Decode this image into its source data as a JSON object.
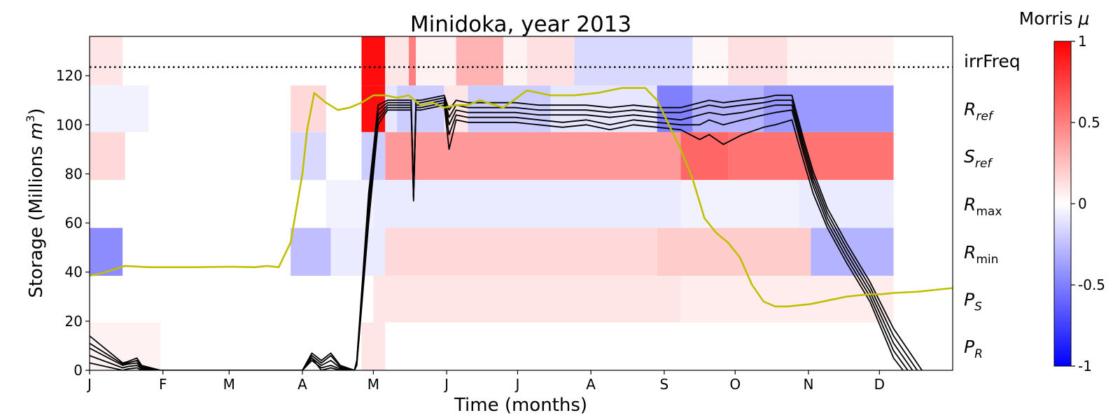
{
  "chart_data": {
    "type": "heatmap",
    "title": "Minidoka, year 2013",
    "xlabel": "Time (months)",
    "ylabel": "Storage (Millions m³)",
    "ylabel_main": "Storage (Millions ",
    "ylabel_unit": "m",
    "ylabel_sup": "3",
    "ylabel_close": ")",
    "x_ticks": [
      "J",
      "F",
      "M",
      "A",
      "M",
      "J",
      "J",
      "A",
      "S",
      "O",
      "N",
      "D"
    ],
    "x_tick_days": [
      0,
      31,
      59,
      90,
      120,
      151,
      181,
      212,
      243,
      273,
      304,
      334
    ],
    "xlim": [
      0,
      365
    ],
    "ylim": [
      0,
      136
    ],
    "y_ticks": [
      0,
      20,
      40,
      60,
      80,
      100,
      120
    ],
    "capacity_line": 123.5,
    "colorbar": {
      "title": "Morris μ",
      "title_text": "Morris ",
      "title_symbol": "μ",
      "range": [
        -1,
        1
      ],
      "ticks": [
        {
          "value": 1,
          "label": "1"
        },
        {
          "value": 0.5,
          "label": "0.5"
        },
        {
          "value": 0,
          "label": "0"
        },
        {
          "value": -0.5,
          "label": "-0.5"
        },
        {
          "value": -1,
          "label": "-1"
        }
      ],
      "colors": {
        "neg": "#0000ff",
        "mid": "#ffffff",
        "pos": "#ff0000"
      }
    },
    "parameter_rows": [
      {
        "key": "irrFreq",
        "base": "irrFreq",
        "sub": "",
        "sub_style": "plain",
        "y_range": [
          116,
          136
        ]
      },
      {
        "key": "Rref",
        "base": "R",
        "sub": "ref",
        "sub_style": "italic",
        "y_range": [
          97,
          116
        ]
      },
      {
        "key": "Sref",
        "base": "S",
        "sub": "ref",
        "sub_style": "italic",
        "y_range": [
          77.5,
          97
        ]
      },
      {
        "key": "Rmax",
        "base": "R",
        "sub": "max",
        "sub_style": "plain",
        "y_range": [
          58,
          77.5
        ]
      },
      {
        "key": "Rmin",
        "base": "R",
        "sub": "min",
        "sub_style": "plain",
        "y_range": [
          38.5,
          58
        ]
      },
      {
        "key": "PS",
        "base": "P",
        "sub": "S",
        "sub_style": "italic",
        "y_range": [
          19.5,
          38.5
        ]
      },
      {
        "key": "PR",
        "base": "P",
        "sub": "R",
        "sub_style": "italic",
        "y_range": [
          0,
          19.5
        ]
      }
    ],
    "heatmap_segments": {
      "irrFreq": [
        {
          "start": 0,
          "end": 14,
          "value": 0.1
        },
        {
          "start": 14,
          "end": 115,
          "value": 0
        },
        {
          "start": 115,
          "end": 125,
          "value": 0.95
        },
        {
          "start": 125,
          "end": 135,
          "value": 0.1
        },
        {
          "start": 135,
          "end": 138,
          "value": 0.5
        },
        {
          "start": 138,
          "end": 155,
          "value": 0.05
        },
        {
          "start": 155,
          "end": 175,
          "value": 0.3
        },
        {
          "start": 175,
          "end": 185,
          "value": 0.05
        },
        {
          "start": 185,
          "end": 205,
          "value": 0.12
        },
        {
          "start": 205,
          "end": 255,
          "value": -0.15
        },
        {
          "start": 255,
          "end": 270,
          "value": 0.03
        },
        {
          "start": 270,
          "end": 295,
          "value": 0.12
        },
        {
          "start": 295,
          "end": 340,
          "value": 0.05
        }
      ],
      "Rref": [
        {
          "start": 0,
          "end": 25,
          "value": -0.05
        },
        {
          "start": 85,
          "end": 100,
          "value": 0.15
        },
        {
          "start": 115,
          "end": 125,
          "value": 0.95
        },
        {
          "start": 125,
          "end": 130,
          "value": -0.1
        },
        {
          "start": 130,
          "end": 150,
          "value": -0.2
        },
        {
          "start": 150,
          "end": 160,
          "value": 0.1
        },
        {
          "start": 160,
          "end": 195,
          "value": -0.2
        },
        {
          "start": 195,
          "end": 240,
          "value": -0.1
        },
        {
          "start": 240,
          "end": 255,
          "value": -0.5
        },
        {
          "start": 255,
          "end": 285,
          "value": -0.3
        },
        {
          "start": 285,
          "end": 340,
          "value": -0.4
        }
      ],
      "Sref": [
        {
          "start": 0,
          "end": 15,
          "value": 0.15
        },
        {
          "start": 85,
          "end": 100,
          "value": -0.15
        },
        {
          "start": 115,
          "end": 125,
          "value": -0.2
        },
        {
          "start": 125,
          "end": 250,
          "value": 0.4
        },
        {
          "start": 250,
          "end": 270,
          "value": 0.6
        },
        {
          "start": 270,
          "end": 340,
          "value": 0.55
        }
      ],
      "Rmax": [
        {
          "start": 100,
          "end": 120,
          "value": -0.05
        },
        {
          "start": 120,
          "end": 250,
          "value": -0.08
        },
        {
          "start": 250,
          "end": 300,
          "value": -0.05
        },
        {
          "start": 300,
          "end": 340,
          "value": -0.08
        }
      ],
      "Rmin": [
        {
          "start": 0,
          "end": 14,
          "value": -0.45
        },
        {
          "start": 14,
          "end": 85,
          "value": 0
        },
        {
          "start": 85,
          "end": 102,
          "value": -0.25
        },
        {
          "start": 102,
          "end": 125,
          "value": -0.08
        },
        {
          "start": 125,
          "end": 240,
          "value": 0.15
        },
        {
          "start": 240,
          "end": 305,
          "value": 0.2
        },
        {
          "start": 305,
          "end": 340,
          "value": -0.3
        }
      ],
      "PS": [
        {
          "start": 120,
          "end": 250,
          "value": 0.1
        },
        {
          "start": 250,
          "end": 340,
          "value": 0.07
        }
      ],
      "PR": [
        {
          "start": 0,
          "end": 30,
          "value": 0.05
        },
        {
          "start": 115,
          "end": 125,
          "value": 0.1
        }
      ]
    },
    "series": [
      {
        "kind": "observed",
        "color": "#bfbf00",
        "x": [
          0,
          5,
          10,
          15,
          25,
          35,
          45,
          60,
          70,
          75,
          80,
          85,
          90,
          92,
          95,
          100,
          105,
          110,
          115,
          120,
          125,
          130,
          135,
          140,
          145,
          150,
          155,
          160,
          165,
          175,
          185,
          195,
          205,
          215,
          225,
          235,
          240,
          245,
          250,
          255,
          260,
          265,
          270,
          275,
          280,
          285,
          290,
          295,
          300,
          305,
          310,
          315,
          320,
          325,
          330,
          335,
          340,
          350,
          365
        ],
        "y": [
          38.5,
          39.5,
          41,
          42.5,
          42,
          42,
          42,
          42.2,
          42,
          42.5,
          42,
          52,
          80,
          98,
          113,
          109,
          106,
          107,
          109,
          112,
          112,
          111,
          112,
          108,
          109,
          107,
          108,
          108,
          110,
          107,
          114,
          112,
          112,
          113,
          115,
          115,
          110,
          100,
          90,
          78,
          62,
          56,
          52,
          46,
          35,
          28,
          26,
          26,
          26.5,
          27,
          28,
          29,
          30,
          30.5,
          31,
          31,
          31.5,
          32,
          33.5
        ]
      }
    ],
    "simulated_runs": [
      {
        "x": [
          0,
          14,
          16,
          20,
          22,
          30,
          80,
          90,
          94,
          98,
          102,
          106,
          112,
          113,
          118,
          122,
          126,
          130,
          134,
          136,
          137,
          138,
          140,
          150,
          152,
          155,
          160,
          170,
          180,
          190,
          200,
          210,
          220,
          230,
          240,
          250,
          258,
          262,
          268,
          276,
          285,
          290,
          297,
          302,
          306,
          312,
          320,
          330,
          340,
          344
        ],
        "y": [
          3,
          0,
          0.5,
          1,
          0,
          0,
          0,
          0,
          5,
          0,
          1,
          0,
          0,
          2,
          60,
          100,
          106,
          106,
          106,
          106,
          69,
          106,
          106,
          108,
          90,
          102,
          101,
          101,
          101,
          100,
          99,
          100,
          98,
          100,
          99,
          98,
          94,
          96,
          92,
          96,
          99,
          100,
          102,
          85,
          72,
          58,
          44,
          28,
          5,
          0
        ]
      },
      {
        "x": [
          0,
          14,
          16,
          20,
          22,
          30,
          80,
          90,
          94,
          98,
          102,
          106,
          112,
          113,
          118,
          122,
          126,
          130,
          134,
          136,
          137,
          138,
          140,
          150,
          152,
          155,
          160,
          170,
          180,
          190,
          200,
          210,
          220,
          230,
          240,
          250,
          258,
          262,
          268,
          276,
          285,
          290,
          297,
          302,
          306,
          312,
          320,
          330,
          340,
          346
        ],
        "y": [
          6,
          1,
          1.5,
          2,
          0.5,
          0,
          0,
          0,
          4,
          1,
          2,
          0.5,
          0,
          2.5,
          63,
          102,
          107,
          107,
          107,
          107,
          70,
          107,
          107,
          109,
          96,
          104,
          103,
          103,
          103,
          102,
          101,
          102,
          100,
          102,
          101,
          100,
          100,
          102,
          100,
          102,
          104,
          105,
          106,
          88,
          75,
          60,
          46,
          30,
          8,
          0
        ]
      },
      {
        "x": [
          0,
          14,
          16,
          20,
          22,
          30,
          80,
          90,
          94,
          98,
          102,
          106,
          112,
          113,
          118,
          122,
          126,
          130,
          134,
          136,
          137,
          138,
          140,
          150,
          152,
          155,
          160,
          170,
          180,
          190,
          200,
          210,
          220,
          230,
          240,
          250,
          258,
          262,
          268,
          276,
          285,
          290,
          297,
          302,
          306,
          312,
          320,
          330,
          340,
          348
        ],
        "y": [
          9,
          2,
          2.5,
          3,
          1,
          0,
          0,
          0,
          5,
          2,
          4,
          1,
          0,
          3,
          66,
          104,
          108,
          108,
          108,
          108,
          71,
          108,
          108,
          110,
          100,
          106,
          105,
          105,
          105,
          104,
          104,
          104,
          103,
          104,
          103,
          102,
          104,
          105,
          104,
          105,
          107,
          108,
          108,
          90,
          77,
          62,
          48,
          32,
          11,
          0
        ]
      },
      {
        "x": [
          0,
          14,
          16,
          20,
          22,
          30,
          80,
          90,
          94,
          98,
          102,
          106,
          112,
          113,
          118,
          122,
          126,
          130,
          134,
          136,
          137,
          138,
          140,
          150,
          152,
          155,
          160,
          170,
          180,
          190,
          200,
          210,
          220,
          230,
          240,
          250,
          258,
          262,
          268,
          276,
          285,
          290,
          297,
          302,
          306,
          312,
          320,
          330,
          340,
          350
        ],
        "y": [
          11,
          2.5,
          3,
          4,
          1.5,
          0,
          0,
          0,
          6,
          3,
          6,
          1.5,
          0,
          3.5,
          69,
          106,
          109,
          109,
          109,
          109,
          71,
          109,
          109,
          111,
          103,
          108,
          107,
          107,
          107,
          106,
          106,
          106,
          105,
          106,
          105,
          105,
          107,
          108,
          107,
          108,
          109,
          110,
          110,
          92,
          79,
          64,
          50,
          34,
          14,
          0
        ]
      },
      {
        "x": [
          0,
          14,
          16,
          20,
          22,
          30,
          80,
          90,
          94,
          98,
          102,
          106,
          112,
          113,
          118,
          122,
          126,
          130,
          134,
          136,
          137,
          138,
          140,
          150,
          152,
          155,
          160,
          170,
          180,
          190,
          200,
          210,
          220,
          230,
          240,
          250,
          258,
          262,
          268,
          276,
          285,
          290,
          297,
          302,
          306,
          312,
          320,
          330,
          340,
          352
        ],
        "y": [
          14,
          3,
          3.5,
          5,
          2,
          0,
          0,
          0,
          7,
          4,
          7,
          2,
          0,
          4,
          72,
          108,
          110,
          110,
          110,
          110,
          72,
          110,
          110,
          112,
          106,
          110,
          109,
          109,
          109,
          108,
          108,
          108,
          107,
          108,
          107,
          107,
          109,
          110,
          109,
          110,
          111,
          112,
          112,
          94,
          81,
          66,
          52,
          36,
          17,
          0
        ]
      }
    ]
  }
}
